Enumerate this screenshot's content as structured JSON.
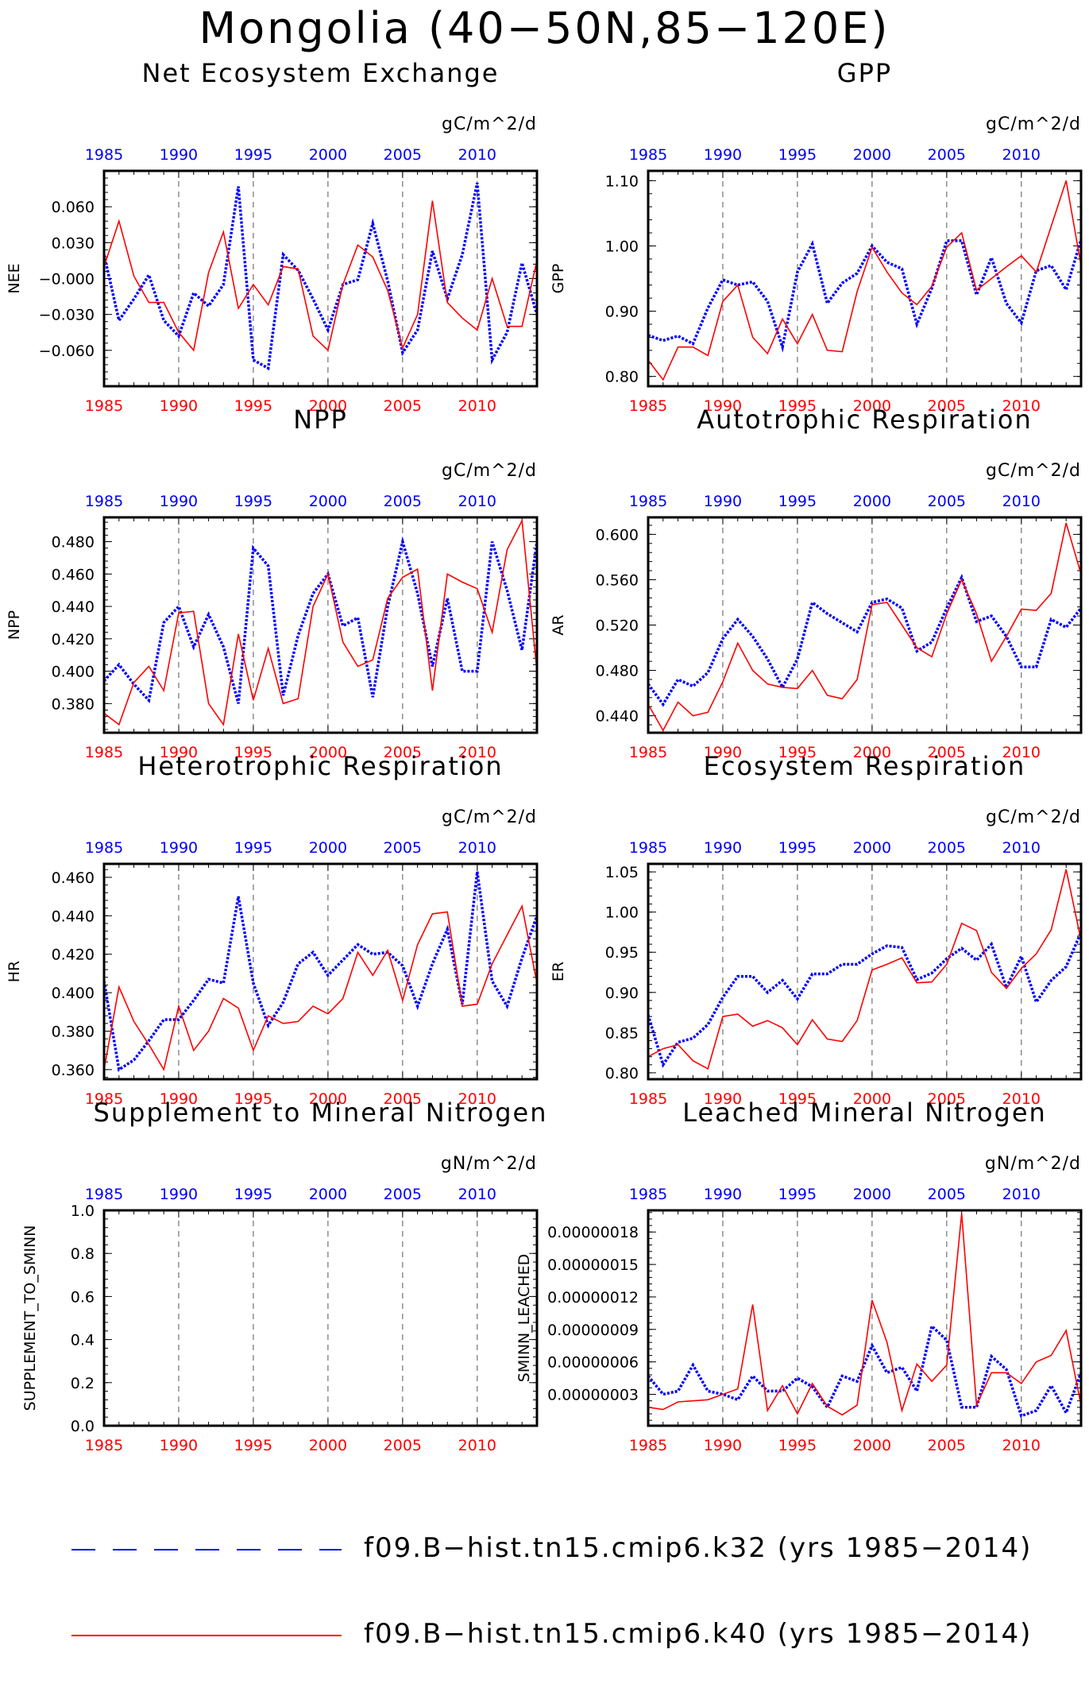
{
  "title": "Mongolia (40−50N,85−120E)",
  "colors": {
    "red": "#ff0000",
    "blue": "#0000ff",
    "axis": "#000000",
    "grid": "#555555"
  },
  "legend": [
    {
      "label": "f09.B−hist.tn15.cmip6.k32 (yrs 1985−2014)",
      "color": "#0000ff",
      "style": "dashed"
    },
    {
      "label": "f09.B−hist.tn15.cmip6.k40 (yrs 1985−2014)",
      "color": "#ff0000",
      "style": "solid"
    }
  ],
  "chart_data": [
    {
      "type": "line",
      "title": "Net Ecosystem Exchange",
      "units": "gC/m^2/d",
      "ylabel": "NEE",
      "ylim": [
        -0.09,
        0.09
      ],
      "yticks": [
        0.06,
        0.03,
        0.0,
        -0.03,
        -0.06
      ],
      "ytick_labels": [
        "0.060",
        "0.030",
        "−0.000",
        "−0.030",
        "−0.060"
      ],
      "x_start": 1985,
      "x_end": 2014,
      "xticks": [
        1985,
        1990,
        1995,
        2000,
        2005,
        2010
      ],
      "series": [
        {
          "style": "dashed",
          "color": "#0000ff",
          "values": [
            0.02,
            -0.035,
            -0.017,
            0.003,
            -0.035,
            -0.048,
            -0.012,
            -0.023,
            -0.005,
            0.077,
            -0.068,
            -0.075,
            0.02,
            0.007,
            -0.017,
            -0.043,
            -0.005,
            -0.001,
            0.046,
            -0.002,
            -0.062,
            -0.043,
            0.023,
            -0.017,
            0.02,
            0.08,
            -0.068,
            -0.045,
            0.013,
            -0.03
          ]
        },
        {
          "style": "solid",
          "color": "#ff0000",
          "values": [
            0.01,
            0.048,
            0.002,
            -0.02,
            -0.02,
            -0.045,
            -0.06,
            0.005,
            0.039,
            -0.025,
            -0.005,
            -0.022,
            0.01,
            0.008,
            -0.048,
            -0.06,
            -0.005,
            0.028,
            0.018,
            -0.01,
            -0.058,
            -0.03,
            0.065,
            -0.02,
            -0.033,
            -0.043,
            0.0,
            -0.04,
            -0.04,
            0.015
          ]
        }
      ]
    },
    {
      "type": "line",
      "title": "GPP",
      "units": "gC/m^2/d",
      "ylabel": "GPP",
      "ylim": [
        0.785,
        1.115
      ],
      "yticks": [
        1.1,
        1.0,
        0.9,
        0.8
      ],
      "ytick_labels": [
        "1.10",
        "1.00",
        "0.90",
        "0.80"
      ],
      "x_start": 1985,
      "x_end": 2014,
      "xticks": [
        1985,
        1990,
        1995,
        2000,
        2005,
        2010
      ],
      "series": [
        {
          "style": "dashed",
          "color": "#0000ff",
          "values": [
            0.863,
            0.855,
            0.862,
            0.85,
            0.905,
            0.948,
            0.94,
            0.945,
            0.915,
            0.845,
            0.96,
            1.003,
            0.912,
            0.943,
            0.958,
            1.0,
            0.975,
            0.965,
            0.88,
            0.935,
            1.008,
            1.008,
            0.925,
            0.982,
            0.912,
            0.882,
            0.962,
            0.97,
            0.933,
            1.01
          ]
        },
        {
          "style": "solid",
          "color": "#ff0000",
          "values": [
            0.825,
            0.795,
            0.845,
            0.845,
            0.832,
            0.915,
            0.94,
            0.86,
            0.835,
            0.888,
            0.85,
            0.895,
            0.84,
            0.838,
            0.93,
            0.998,
            0.96,
            0.928,
            0.91,
            0.938,
            0.998,
            1.02,
            0.932,
            0.95,
            0.968,
            0.985,
            0.96,
            1.03,
            1.1,
            0.97
          ]
        }
      ]
    },
    {
      "type": "line",
      "title": "NPP",
      "units": "gC/m^2/d",
      "ylabel": "NPP",
      "ylim": [
        0.362,
        0.495
      ],
      "yticks": [
        0.48,
        0.46,
        0.44,
        0.42,
        0.4,
        0.38
      ],
      "ytick_labels": [
        "0.480",
        "0.460",
        "0.440",
        "0.420",
        "0.400",
        "0.380"
      ],
      "x_start": 1985,
      "x_end": 2014,
      "xticks": [
        1985,
        1990,
        1995,
        2000,
        2005,
        2010
      ],
      "series": [
        {
          "style": "dashed",
          "color": "#0000ff",
          "values": [
            0.394,
            0.404,
            0.392,
            0.382,
            0.43,
            0.44,
            0.415,
            0.435,
            0.415,
            0.38,
            0.476,
            0.465,
            0.385,
            0.422,
            0.448,
            0.46,
            0.428,
            0.433,
            0.384,
            0.44,
            0.48,
            0.448,
            0.403,
            0.445,
            0.4,
            0.4,
            0.48,
            0.45,
            0.413,
            0.48
          ]
        },
        {
          "style": "solid",
          "color": "#ff0000",
          "values": [
            0.374,
            0.367,
            0.393,
            0.403,
            0.388,
            0.436,
            0.437,
            0.38,
            0.367,
            0.423,
            0.382,
            0.414,
            0.38,
            0.383,
            0.44,
            0.46,
            0.418,
            0.403,
            0.407,
            0.445,
            0.458,
            0.463,
            0.388,
            0.46,
            0.455,
            0.451,
            0.424,
            0.475,
            0.493,
            0.4
          ]
        }
      ]
    },
    {
      "type": "line",
      "title": "Autotrophic Respiration",
      "units": "gC/m^2/d",
      "ylabel": "AR",
      "ylim": [
        0.425,
        0.615
      ],
      "yticks": [
        0.6,
        0.56,
        0.52,
        0.48,
        0.44
      ],
      "ytick_labels": [
        "0.600",
        "0.560",
        "0.520",
        "0.480",
        "0.440"
      ],
      "x_start": 1985,
      "x_end": 2014,
      "xticks": [
        1985,
        1990,
        1995,
        2000,
        2005,
        2010
      ],
      "series": [
        {
          "style": "dashed",
          "color": "#0000ff",
          "values": [
            0.468,
            0.45,
            0.472,
            0.466,
            0.478,
            0.508,
            0.525,
            0.51,
            0.49,
            0.465,
            0.49,
            0.54,
            0.53,
            0.522,
            0.514,
            0.54,
            0.543,
            0.535,
            0.497,
            0.505,
            0.535,
            0.562,
            0.523,
            0.528,
            0.51,
            0.483,
            0.483,
            0.525,
            0.518,
            0.535
          ]
        },
        {
          "style": "solid",
          "color": "#ff0000",
          "values": [
            0.45,
            0.427,
            0.452,
            0.44,
            0.443,
            0.47,
            0.504,
            0.48,
            0.468,
            0.465,
            0.464,
            0.48,
            0.458,
            0.455,
            0.472,
            0.538,
            0.54,
            0.52,
            0.5,
            0.492,
            0.53,
            0.56,
            0.53,
            0.488,
            0.51,
            0.534,
            0.533,
            0.548,
            0.61,
            0.565
          ]
        }
      ]
    },
    {
      "type": "line",
      "title": "Heterotrophic Respiration",
      "units": "gC/m^2/d",
      "ylabel": "HR",
      "ylim": [
        0.355,
        0.467
      ],
      "yticks": [
        0.46,
        0.44,
        0.42,
        0.4,
        0.38,
        0.36
      ],
      "ytick_labels": [
        "0.460",
        "0.440",
        "0.420",
        "0.400",
        "0.380",
        "0.360"
      ],
      "x_start": 1985,
      "x_end": 2014,
      "xticks": [
        1985,
        1990,
        1995,
        2000,
        2005,
        2010
      ],
      "series": [
        {
          "style": "dashed",
          "color": "#0000ff",
          "values": [
            0.406,
            0.36,
            0.365,
            0.375,
            0.386,
            0.386,
            0.396,
            0.407,
            0.405,
            0.45,
            0.405,
            0.383,
            0.395,
            0.415,
            0.421,
            0.409,
            0.417,
            0.425,
            0.42,
            0.421,
            0.414,
            0.393,
            0.415,
            0.433,
            0.394,
            0.463,
            0.406,
            0.393,
            0.418,
            0.44
          ]
        },
        {
          "style": "solid",
          "color": "#ff0000",
          "values": [
            0.36,
            0.403,
            0.385,
            0.373,
            0.36,
            0.393,
            0.37,
            0.38,
            0.397,
            0.392,
            0.37,
            0.388,
            0.384,
            0.385,
            0.393,
            0.389,
            0.397,
            0.421,
            0.409,
            0.422,
            0.396,
            0.425,
            0.441,
            0.442,
            0.393,
            0.394,
            0.415,
            0.43,
            0.445,
            0.405
          ]
        }
      ]
    },
    {
      "type": "line",
      "title": "Ecosystem Respiration",
      "units": "gC/m^2/d",
      "ylabel": "ER",
      "ylim": [
        0.792,
        1.06
      ],
      "yticks": [
        1.05,
        1.0,
        0.95,
        0.9,
        0.85,
        0.8
      ],
      "ytick_labels": [
        "1.05",
        "1.00",
        "0.95",
        "0.90",
        "0.85",
        "0.80"
      ],
      "x_start": 1985,
      "x_end": 2014,
      "xticks": [
        1985,
        1990,
        1995,
        2000,
        2005,
        2010
      ],
      "series": [
        {
          "style": "dashed",
          "color": "#0000ff",
          "values": [
            0.872,
            0.81,
            0.838,
            0.843,
            0.86,
            0.894,
            0.92,
            0.92,
            0.9,
            0.915,
            0.892,
            0.923,
            0.923,
            0.935,
            0.935,
            0.948,
            0.958,
            0.956,
            0.916,
            0.924,
            0.942,
            0.955,
            0.94,
            0.96,
            0.906,
            0.945,
            0.888,
            0.915,
            0.932,
            0.975
          ]
        },
        {
          "style": "solid",
          "color": "#ff0000",
          "values": [
            0.82,
            0.83,
            0.835,
            0.815,
            0.805,
            0.87,
            0.873,
            0.858,
            0.865,
            0.856,
            0.835,
            0.866,
            0.842,
            0.839,
            0.865,
            0.928,
            0.935,
            0.943,
            0.912,
            0.913,
            0.935,
            0.986,
            0.977,
            0.925,
            0.905,
            0.93,
            0.948,
            0.978,
            1.053,
            0.965
          ]
        }
      ]
    },
    {
      "type": "line",
      "title": "Supplement to Mineral Nitrogen",
      "units": "gN/m^2/d",
      "ylabel": "SUPPLEMENT_TO_SMINN",
      "ylim": [
        0.0,
        1.0
      ],
      "yticks": [
        1.0,
        0.8,
        0.6,
        0.4,
        0.2,
        0.0
      ],
      "ytick_labels": [
        "1.0",
        "0.8",
        "0.6",
        "0.4",
        "0.2",
        "0.0"
      ],
      "x_start": 1985,
      "x_end": 2014,
      "xticks": [
        1985,
        1990,
        1995,
        2000,
        2005,
        2010
      ],
      "series": []
    },
    {
      "type": "line",
      "title": "Leached Mineral Nitrogen",
      "units": "gN/m^2/d",
      "ylabel": "SMINN_LEACHED",
      "ylim": [
        1e-09,
        2e-07
      ],
      "yticks": [
        1.8e-07,
        1.5e-07,
        1.2e-07,
        9e-08,
        6e-08,
        3e-08
      ],
      "ytick_labels": [
        "0.00000018",
        "0.00000015",
        "0.00000012",
        "0.00000009",
        "0.00000006",
        "0.00000003"
      ],
      "x_start": 1985,
      "x_end": 2014,
      "xticks": [
        1985,
        1990,
        1995,
        2000,
        2005,
        2010
      ],
      "series": [
        {
          "style": "dashed",
          "color": "#0000ff",
          "values": [
            4.7e-08,
            3e-08,
            3.3e-08,
            5.7e-08,
            3.3e-08,
            3e-08,
            2.5e-08,
            4.7e-08,
            3.3e-08,
            3.3e-08,
            4.5e-08,
            3.7e-08,
            1.8e-08,
            4.7e-08,
            4.2e-08,
            7.5e-08,
            5e-08,
            5.5e-08,
            3.3e-08,
            9.3e-08,
            8e-08,
            1.8e-08,
            1.8e-08,
            6.5e-08,
            5.3e-08,
            1e-08,
            1.5e-08,
            3.8e-08,
            1.3e-08,
            5e-08
          ]
        },
        {
          "style": "solid",
          "color": "#ff0000",
          "values": [
            1.8e-08,
            1.6e-08,
            2.3e-08,
            2.4e-08,
            2.5e-08,
            3e-08,
            3.5e-08,
            1.13e-07,
            1.5e-08,
            3.8e-08,
            1.2e-08,
            4e-08,
            1.9e-08,
            1.1e-08,
            2e-08,
            1.17e-07,
            7.8e-08,
            1.5e-08,
            5.8e-08,
            4.2e-08,
            5.7e-08,
            1.97e-07,
            2e-08,
            5e-08,
            5e-08,
            4e-08,
            6e-08,
            6.6e-08,
            8.9e-08,
            2e-08
          ]
        }
      ]
    }
  ]
}
